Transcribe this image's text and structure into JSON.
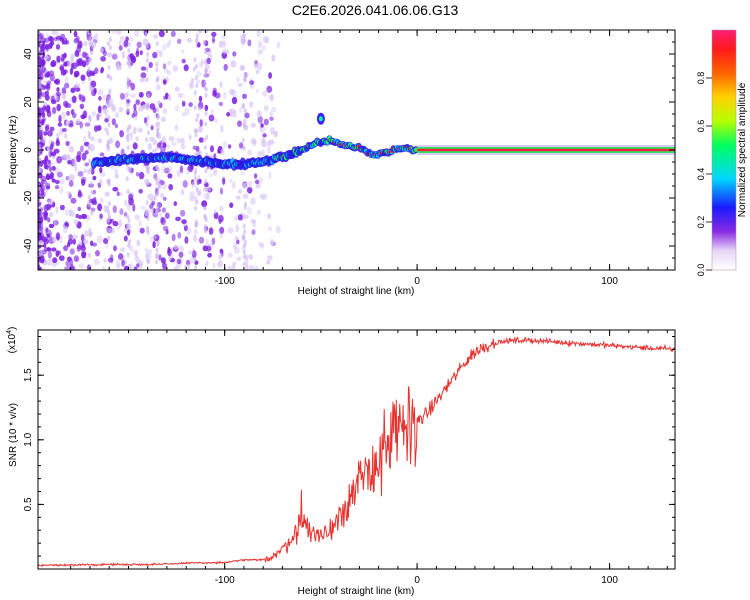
{
  "title": "C2E6.2026.041.06.06.G13",
  "chart_data": [
    {
      "type": "heatmap",
      "title": "",
      "xlabel": "Height of straight line (km)",
      "ylabel": "Frequency (Hz)",
      "xlim": [
        -197,
        134
      ],
      "ylim": [
        -50,
        50
      ],
      "xticks": [
        -100,
        0,
        100
      ],
      "xtick_labels": [
        "-100",
        "0",
        "100"
      ],
      "yticks": [
        -40,
        -20,
        0,
        20,
        40
      ],
      "ytick_labels": [
        "-40",
        "-20",
        "0",
        "20",
        "40"
      ],
      "colorbar": {
        "label": "Normalized spectral amplitude",
        "range": [
          0,
          1
        ],
        "ticks": [
          0.0,
          0.2,
          0.4,
          0.6,
          0.8
        ],
        "tick_labels": [
          "0.0",
          "0.2",
          "0.4",
          "0.6",
          "0.8"
        ]
      },
      "ridge": {
        "x": [
          -168,
          -150,
          -130,
          -110,
          -95,
          -80,
          -70,
          -60,
          -52,
          -45,
          -38,
          -30,
          -22,
          -15,
          -8,
          0,
          20,
          60,
          100,
          134
        ],
        "y": [
          -5,
          -4,
          -3,
          -5,
          -6,
          -5,
          -3,
          0,
          3,
          4,
          2,
          1,
          -2,
          -1,
          1,
          0,
          0,
          0,
          0,
          0
        ]
      }
    },
    {
      "type": "line",
      "title": "",
      "xlabel": "Height of straight line (km)",
      "ylabel": "SNR (10 * v/v)",
      "y_exponent_label": "(x10",
      "y_exponent_power": "4",
      "y_exponent_close": ")",
      "xlim": [
        -197,
        134
      ],
      "ylim": [
        0,
        18500
      ],
      "xticks": [
        -100,
        0,
        100
      ],
      "xtick_labels": [
        "-100",
        "0",
        "100"
      ],
      "yticks": [
        5000,
        10000,
        15000
      ],
      "ytick_labels": [
        "0.5",
        "1.0",
        "1.5"
      ],
      "color": "#e8322f",
      "series": [
        {
          "name": "SNR",
          "x": [
            -197,
            -180,
            -160,
            -140,
            -120,
            -100,
            -90,
            -80,
            -75,
            -70,
            -65,
            -60,
            -55,
            -50,
            -45,
            -40,
            -35,
            -30,
            -25,
            -20,
            -15,
            -10,
            -5,
            0,
            5,
            10,
            15,
            20,
            25,
            30,
            35,
            40,
            50,
            60,
            70,
            80,
            90,
            100,
            110,
            120,
            134
          ],
          "y": [
            300,
            300,
            350,
            350,
            450,
            500,
            700,
            700,
            1000,
            1500,
            2500,
            3500,
            3000,
            2500,
            3000,
            4500,
            5500,
            6500,
            7500,
            8500,
            9500,
            10500,
            11000,
            11500,
            12000,
            13000,
            14000,
            15000,
            16000,
            16800,
            17200,
            17500,
            17700,
            17700,
            17600,
            17500,
            17400,
            17300,
            17200,
            17100,
            17000
          ]
        }
      ]
    }
  ]
}
